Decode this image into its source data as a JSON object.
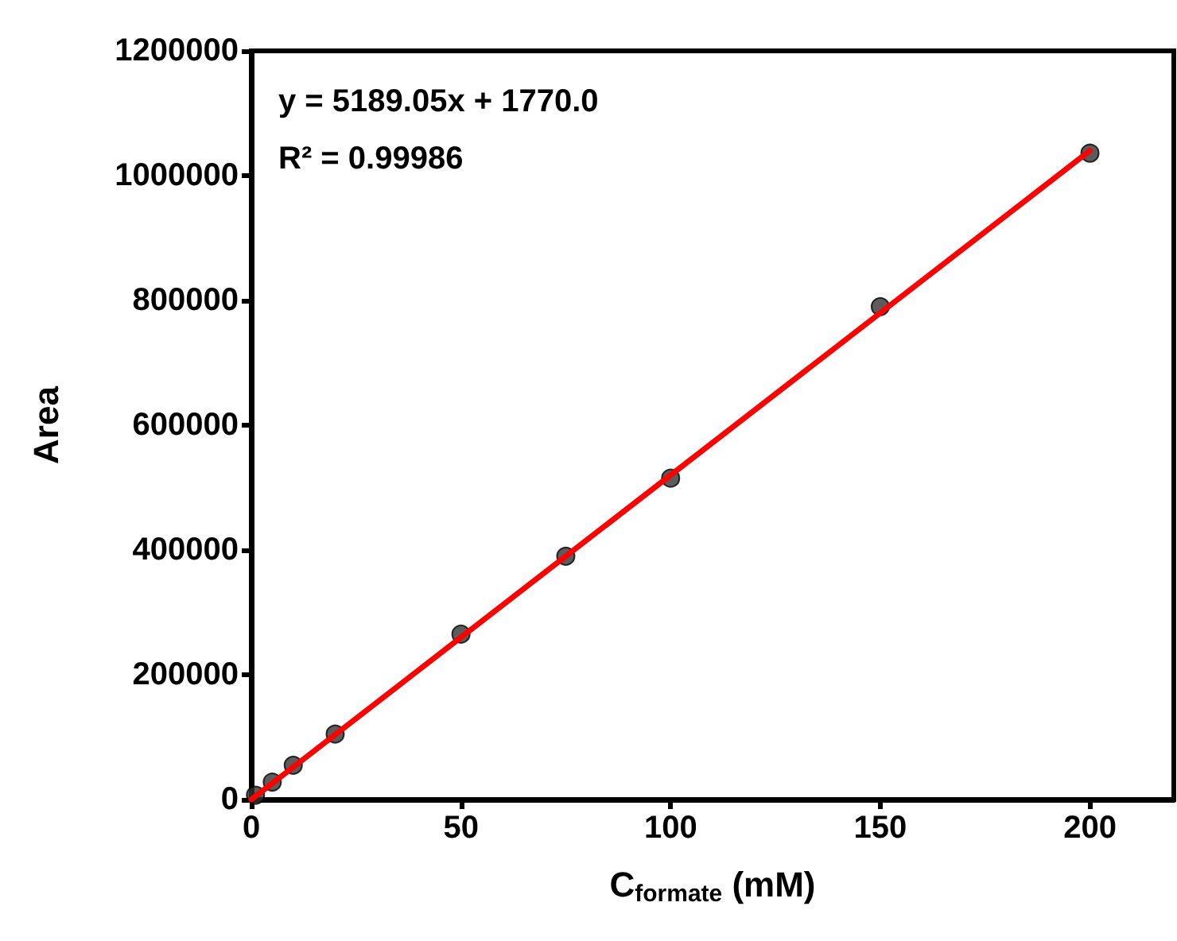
{
  "chart_data": {
    "type": "scatter",
    "xlabel": "C$_{formate}$ (mM)",
    "ylabel": "Area",
    "xlim": [
      0,
      220
    ],
    "xticks": [
      0,
      50,
      100,
      150,
      200
    ],
    "ylim": [
      0,
      1200000
    ],
    "yticks": [
      0,
      200000,
      400000,
      600000,
      800000,
      1000000,
      1200000
    ],
    "grid": false,
    "marker": "circle",
    "annotations": [
      "y = 5189.05x + 1770.0",
      "R² = 0.99986"
    ],
    "series": [
      {
        "type": "scatter",
        "color": "#333333",
        "x": [
          1,
          5,
          10,
          20,
          50,
          75,
          100,
          150,
          200
        ],
        "values": [
          7000,
          28000,
          55000,
          105000,
          265000,
          390000,
          515000,
          790000,
          1036000
        ]
      },
      {
        "type": "line",
        "color": "#ff0000",
        "line_style": "solid",
        "marker": "none",
        "x": [
          0,
          200
        ],
        "values": [
          0,
          1040000
        ]
      }
    ]
  }
}
